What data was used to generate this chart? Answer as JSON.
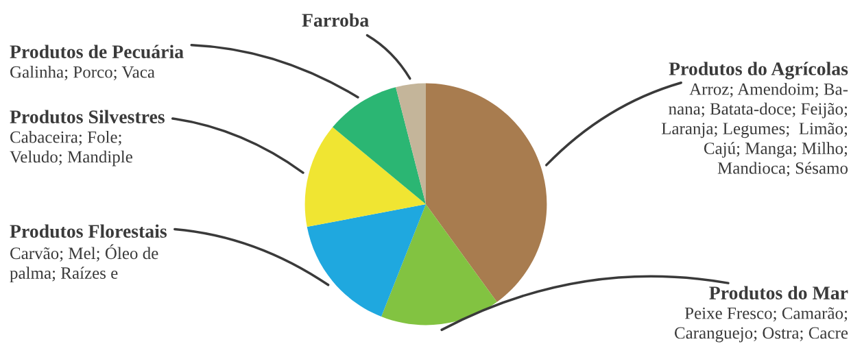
{
  "chart_data": {
    "type": "pie",
    "categories": [
      "Produtos do Agrícolas",
      "Produtos do Mar",
      "Produtos Florestais",
      "Produtos Silvestres",
      "Produtos de Pecuária",
      "Farroba"
    ],
    "values": [
      40,
      16,
      16,
      14,
      10,
      4
    ],
    "colors": [
      "#a87c4f",
      "#82c341",
      "#1fa8df",
      "#f0e532",
      "#2bb673",
      "#c4b59a"
    ],
    "annotations": [
      "Arroz; Amendoim; Ba-\nnana; Batata-doce; Feijão;\nLaranja; Legumes;  Limão;\nCajú; Manga; Milho;\nMandioca; Sésamo",
      "Peixe Fresco; Camarão;\nCaranguejo; Ostra; Cacre",
      "Carvão; Mel; Óleo de\npalma; Raízes e",
      "Cabaceira; Fole;\nVeludo; Mandiple",
      "Galinha; Porco; Vaca"
    ]
  }
}
